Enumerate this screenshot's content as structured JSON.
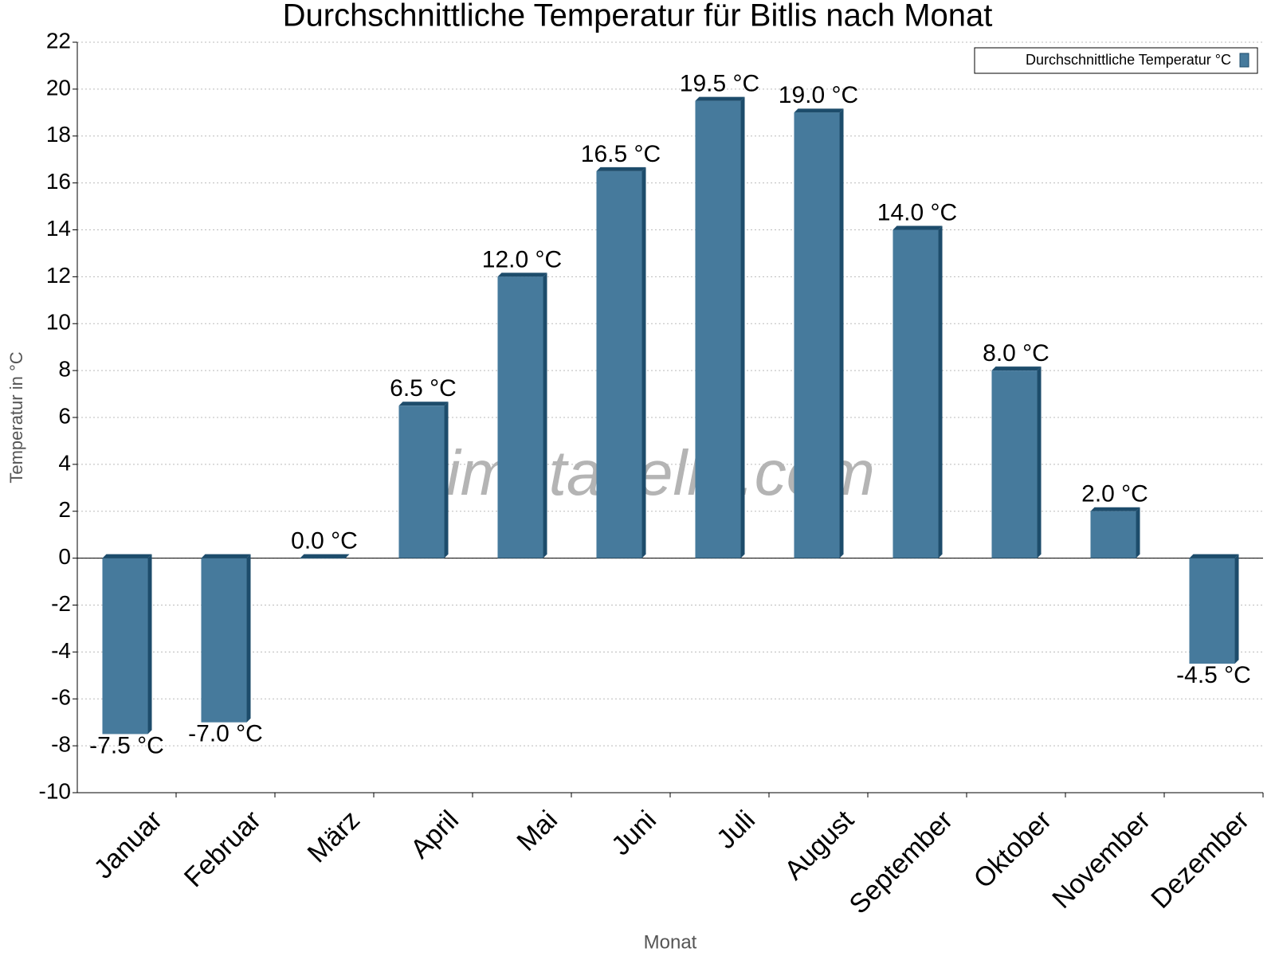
{
  "chart_data": {
    "type": "bar",
    "title": "Durchschnittliche Temperatur für Bitlis nach Monat",
    "x_label": "Monat",
    "y_label": "Temperatur in °C",
    "watermark": "klimatabelle.com",
    "categories": [
      "Januar",
      "Februar",
      "März",
      "April",
      "Mai",
      "Juni",
      "Juli",
      "August",
      "September",
      "Oktober",
      "November",
      "Dezember"
    ],
    "series": [
      {
        "name": "Durchschnittliche Temperatur °C",
        "color": "#467a9c",
        "values": [
          -7.5,
          -7.0,
          0.0,
          6.5,
          12.0,
          16.5,
          19.5,
          19.0,
          14.0,
          8.0,
          2.0,
          -4.5
        ],
        "value_labels": [
          "-7.5 °C",
          "-7.0 °C",
          "0.0 °C",
          "6.5 °C",
          "12.0 °C",
          "16.5 °C",
          "19.5 °C",
          "19.0 °C",
          "14.0 °C",
          "8.0 °C",
          "2.0 °C",
          "-4.5 °C"
        ]
      }
    ],
    "ylim": [
      -10,
      22
    ],
    "yticks": [
      -10,
      -8,
      -6,
      -4,
      -2,
      0,
      2,
      4,
      6,
      8,
      10,
      12,
      14,
      16,
      18,
      20,
      22
    ],
    "grid": true,
    "legend": "top-right"
  }
}
